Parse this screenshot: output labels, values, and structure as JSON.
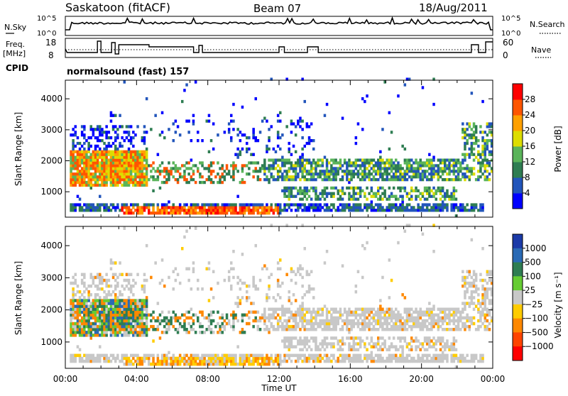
{
  "header": {
    "station": "Saskatoon (fitACF)",
    "beam": "Beam 07",
    "date": "18/Aug/2011"
  },
  "top_panels": {
    "nsky_label": "N.Sky",
    "nsky_ticks": [
      "10^5",
      "10^0"
    ],
    "nsearch_label": "N.Search",
    "nsearch_ticks": [
      "10^5",
      "10^0"
    ],
    "freq_label": "Freq.",
    "freq_unit": "[MHz]",
    "freq_ticks": [
      "18",
      "8"
    ],
    "nave_label": "Nave",
    "nave_ticks": [
      "60",
      "0"
    ],
    "cpid_label": "CPID",
    "cpid_value": "normalsound (fast) 157"
  },
  "chart_data": [
    {
      "type": "heatmap",
      "name": "power",
      "ylabel": "Slant Range [km]",
      "ylim": [
        180,
        4600
      ],
      "yticks": [
        1000,
        2000,
        3000,
        4000
      ],
      "xlim": [
        0,
        24
      ],
      "colorbar_label": "Power [dB]",
      "colorbar_ticks": [
        "4",
        "8",
        "12",
        "16",
        "20",
        "24",
        "28"
      ],
      "colors": [
        "#0000ff",
        "#2255bb",
        "#2e7d52",
        "#5ab45a",
        "#dddd00",
        "#ffa000",
        "#ff5500",
        "#ff0000"
      ]
    },
    {
      "type": "heatmap",
      "name": "velocity",
      "ylabel": "Slant Range [km]",
      "ylim": [
        180,
        4600
      ],
      "yticks": [
        1000,
        2000,
        3000,
        4000
      ],
      "xlim": [
        0,
        24
      ],
      "xlabel": "Time UT",
      "xticks": [
        "00:00",
        "04:00",
        "08:00",
        "12:00",
        "16:00",
        "20:00",
        "00:00"
      ],
      "colorbar_label": "Velocity [m s⁻¹]",
      "colorbar_ticks": [
        "1000",
        "500",
        "100",
        "25",
        "−25",
        "−100",
        "−500",
        "−1000"
      ],
      "colors": [
        "#1b3aa8",
        "#2a6ab5",
        "#2e7d52",
        "#66cc33",
        "#c8c8c8",
        "#ffcc00",
        "#ff8800",
        "#ff4400",
        "#ff0000"
      ]
    }
  ]
}
